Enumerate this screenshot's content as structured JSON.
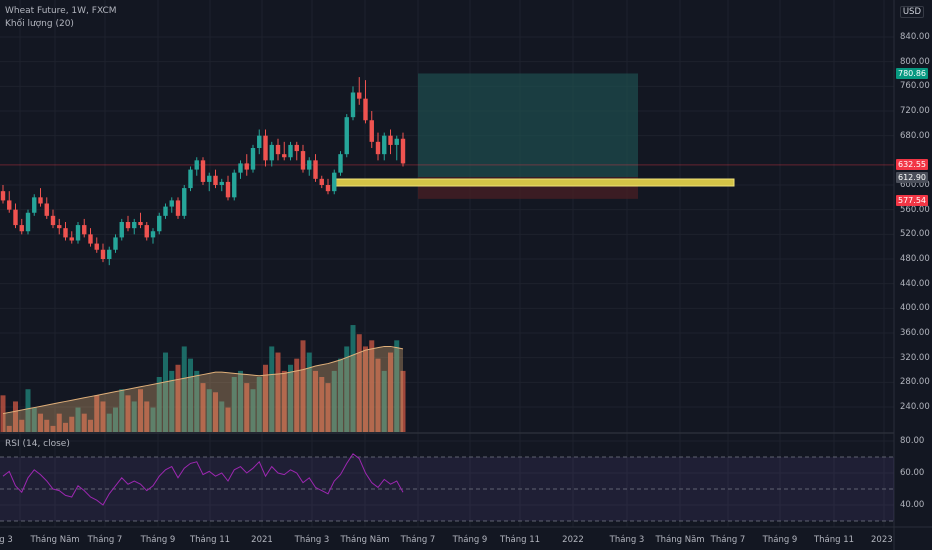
{
  "legend": {
    "title": "Wheat Future, 1W, FXCM",
    "volume": "Khối lượng (20)",
    "rsi": "RSI (14, close)"
  },
  "currency": "USD",
  "corner_glyph": "g",
  "price_axis": [
    "840.00",
    "800.00",
    "760.00",
    "720.00",
    "680.00",
    "600.00",
    "560.00",
    "520.00",
    "480.00",
    "440.00",
    "400.00",
    "360.00",
    "320.00",
    "280.00",
    "240.00"
  ],
  "rsi_axis": [
    "80.00",
    "60.00",
    "40.00"
  ],
  "price_labels": [
    {
      "value": "780.86",
      "color": "#089981"
    },
    {
      "value": "632.55",
      "color": "#f23645"
    },
    {
      "value": "612.90",
      "color": "#4a4e59"
    },
    {
      "value": "577.54",
      "color": "#f23645"
    }
  ],
  "time_axis": [
    "g 3",
    "Tháng Năm",
    "Tháng 7",
    "Tháng 9",
    "Tháng 11",
    "2021",
    "Tháng 3",
    "Tháng Năm",
    "Tháng 7",
    "Tháng 9",
    "Tháng 11",
    "2022",
    "Tháng 3",
    "Tháng Năm",
    "Tháng 7",
    "Tháng 9",
    "Tháng 11",
    "2023"
  ],
  "colors": {
    "up": "#26a69a",
    "down": "#ef5350",
    "zone": "#d4c447",
    "profit": "#1e4f4f",
    "loss": "#4a1f24",
    "rsi": "#9c27b0"
  },
  "chart_data": {
    "type": "candlestick",
    "symbol": "Wheat Future",
    "timeframe": "1W",
    "source": "FXCM",
    "ylim": [
      220,
      860
    ],
    "candles": [
      [
        590,
        600,
        570,
        575
      ],
      [
        575,
        590,
        555,
        560
      ],
      [
        560,
        570,
        530,
        535
      ],
      [
        535,
        545,
        520,
        525
      ],
      [
        525,
        560,
        520,
        555
      ],
      [
        555,
        585,
        550,
        580
      ],
      [
        580,
        595,
        565,
        570
      ],
      [
        570,
        580,
        545,
        550
      ],
      [
        550,
        560,
        530,
        535
      ],
      [
        535,
        545,
        520,
        530
      ],
      [
        530,
        540,
        510,
        515
      ],
      [
        515,
        525,
        505,
        510
      ],
      [
        510,
        540,
        505,
        535
      ],
      [
        535,
        545,
        515,
        520
      ],
      [
        520,
        530,
        500,
        505
      ],
      [
        505,
        515,
        490,
        495
      ],
      [
        495,
        505,
        475,
        480
      ],
      [
        480,
        500,
        470,
        495
      ],
      [
        495,
        520,
        490,
        515
      ],
      [
        515,
        545,
        510,
        540
      ],
      [
        540,
        550,
        525,
        530
      ],
      [
        530,
        545,
        520,
        540
      ],
      [
        540,
        555,
        530,
        535
      ],
      [
        535,
        540,
        510,
        515
      ],
      [
        515,
        530,
        505,
        525
      ],
      [
        525,
        555,
        520,
        550
      ],
      [
        550,
        570,
        545,
        565
      ],
      [
        565,
        580,
        555,
        575
      ],
      [
        575,
        580,
        545,
        550
      ],
      [
        550,
        600,
        545,
        595
      ],
      [
        595,
        630,
        590,
        625
      ],
      [
        625,
        645,
        615,
        640
      ],
      [
        640,
        645,
        600,
        605
      ],
      [
        605,
        620,
        590,
        615
      ],
      [
        615,
        625,
        595,
        600
      ],
      [
        600,
        610,
        590,
        605
      ],
      [
        605,
        615,
        575,
        580
      ],
      [
        580,
        625,
        575,
        620
      ],
      [
        620,
        640,
        610,
        635
      ],
      [
        635,
        650,
        615,
        625
      ],
      [
        625,
        665,
        620,
        660
      ],
      [
        660,
        690,
        650,
        680
      ],
      [
        680,
        690,
        630,
        640
      ],
      [
        640,
        670,
        630,
        665
      ],
      [
        665,
        675,
        640,
        650
      ],
      [
        650,
        670,
        640,
        645
      ],
      [
        645,
        670,
        640,
        665
      ],
      [
        665,
        670,
        640,
        655
      ],
      [
        655,
        665,
        620,
        625
      ],
      [
        625,
        645,
        615,
        640
      ],
      [
        640,
        650,
        605,
        610
      ],
      [
        610,
        615,
        595,
        600
      ],
      [
        600,
        610,
        585,
        590
      ],
      [
        590,
        625,
        585,
        620
      ],
      [
        620,
        655,
        615,
        650
      ],
      [
        650,
        715,
        645,
        710
      ],
      [
        710,
        760,
        705,
        750
      ],
      [
        750,
        775,
        730,
        740
      ],
      [
        740,
        770,
        700,
        705
      ],
      [
        705,
        720,
        660,
        670
      ],
      [
        670,
        685,
        640,
        650
      ],
      [
        650,
        685,
        640,
        680
      ],
      [
        680,
        690,
        650,
        665
      ],
      [
        665,
        680,
        640,
        675
      ],
      [
        675,
        685,
        630,
        635
      ]
    ],
    "volume": [
      260,
      210,
      250,
      220,
      270,
      240,
      230,
      220,
      210,
      230,
      215,
      225,
      240,
      230,
      220,
      260,
      250,
      230,
      240,
      270,
      260,
      250,
      270,
      250,
      240,
      290,
      330,
      300,
      310,
      340,
      320,
      300,
      280,
      270,
      265,
      250,
      240,
      290,
      300,
      280,
      270,
      290,
      310,
      340,
      330,
      300,
      310,
      320,
      350,
      330,
      300,
      290,
      280,
      300,
      320,
      340,
      375,
      360,
      340,
      350,
      320,
      300,
      330,
      350,
      300
    ],
    "volume_ma": [
      230,
      232,
      234,
      236,
      238,
      240,
      242,
      244,
      246,
      248,
      250,
      252,
      254,
      256,
      258,
      260,
      262,
      264,
      266,
      268,
      270,
      272,
      274,
      276,
      278,
      280,
      282,
      284,
      286,
      288,
      290,
      292,
      294,
      296,
      298,
      298,
      297,
      296,
      295,
      294,
      293,
      292,
      293,
      294,
      295,
      296,
      298,
      300,
      302,
      305,
      308,
      310,
      312,
      315,
      318,
      322,
      326,
      330,
      334,
      336,
      338,
      340,
      340,
      338,
      336
    ],
    "rsi": [
      58,
      61,
      52,
      48,
      57,
      62,
      59,
      55,
      50,
      49,
      46,
      45,
      52,
      49,
      45,
      43,
      40,
      47,
      52,
      57,
      53,
      55,
      53,
      49,
      52,
      58,
      62,
      64,
      57,
      63,
      66,
      67,
      59,
      61,
      58,
      60,
      55,
      62,
      64,
      60,
      63,
      67,
      58,
      64,
      60,
      59,
      62,
      60,
      54,
      57,
      51,
      49,
      47,
      55,
      59,
      66,
      72,
      69,
      60,
      54,
      51,
      56,
      53,
      55,
      48
    ],
    "trade": {
      "target": 780.86,
      "entry": 612.9,
      "stop": 577.54,
      "current": 632.55
    }
  }
}
